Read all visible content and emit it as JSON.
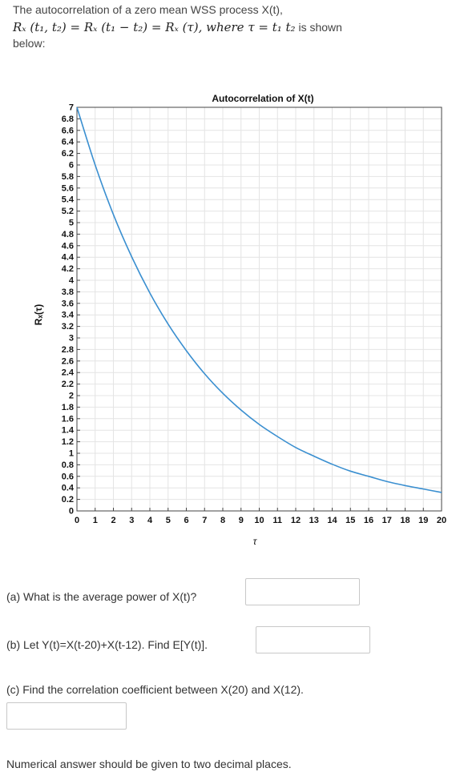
{
  "intro": {
    "line1": "The autocorrelation of a zero mean WSS process X(t),",
    "equation": "Rₓ (t₁, t₂) = Rₓ (t₁ − t₂) = Rₓ (τ), where τ = t₁   t₂",
    "is_shown": "is shown",
    "line3": "below:"
  },
  "chart_data": {
    "type": "line",
    "title": "Autocorrelation of X(t)",
    "xlabel": "τ",
    "ylabel": "Rₓ(τ)",
    "xlim": [
      0,
      20
    ],
    "ylim": [
      0,
      7
    ],
    "xticks": [
      "0",
      "1",
      "2",
      "3",
      "4",
      "5",
      "6",
      "7",
      "8",
      "9",
      "10",
      "11",
      "12",
      "13",
      "14",
      "15",
      "16",
      "17",
      "18",
      "19",
      "20"
    ],
    "yticks": [
      "0",
      "0.2",
      "0.4",
      "0.6",
      "0.8",
      "1",
      "1.2",
      "1.4",
      "1.6",
      "1.8",
      "2",
      "2.2",
      "2.4",
      "2.6",
      "2.8",
      "3",
      "3.2",
      "3.4",
      "3.6",
      "3.8",
      "4",
      "4.2",
      "4.4",
      "4.6",
      "4.8",
      "5",
      "5.2",
      "5.4",
      "5.6",
      "5.8",
      "6",
      "6.2",
      "6.4",
      "6.6",
      "6.8",
      "7"
    ],
    "grid": true,
    "line_color": "#3a8fd0",
    "series": [
      {
        "x": [
          0,
          1,
          2,
          3,
          4,
          5,
          6,
          7,
          8,
          9,
          10,
          11,
          12,
          13,
          14,
          15,
          16,
          17,
          18,
          19,
          20
        ],
        "y": [
          7,
          6.0,
          5.14,
          4.41,
          3.78,
          3.24,
          2.78,
          2.38,
          2.04,
          1.75,
          1.5,
          1.29,
          1.1,
          0.95,
          0.81,
          0.69,
          0.6,
          0.51,
          0.44,
          0.38,
          0.32
        ]
      }
    ]
  },
  "questions": {
    "a": "(a) What is the average power of X(t)?",
    "b": "(b) Let Y(t)=X(t-20)+X(t-12). Find E[Y(t)].",
    "c": "(c) Find the correlation coefficient between X(20) and X(12)."
  },
  "answers": {
    "a": "",
    "b": "",
    "c": ""
  },
  "note": "Numerical answer should be given to two decimal places."
}
